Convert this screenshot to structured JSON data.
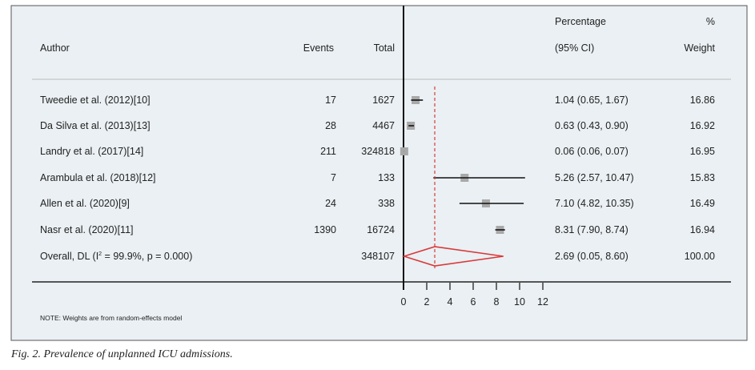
{
  "chart_data": {
    "type": "forest",
    "headers": {
      "author": "Author",
      "events": "Events",
      "total": "Total",
      "effect_top": "Percentage",
      "effect_bottom": "(95% CI)",
      "weight_top": "%",
      "weight_bottom": "Weight"
    },
    "studies": [
      {
        "author": "Tweedie et al. (2012)[10]",
        "events": "17",
        "total": "1627",
        "est": 1.04,
        "lo": 0.65,
        "hi": 1.67,
        "ci_text": "1.04 (0.65, 1.67)",
        "weight": "16.86"
      },
      {
        "author": "Da Silva et al. (2013)[13]",
        "events": "28",
        "total": "4467",
        "est": 0.63,
        "lo": 0.43,
        "hi": 0.9,
        "ci_text": "0.63 (0.43, 0.90)",
        "weight": "16.92"
      },
      {
        "author": "Landry et al. (2017)[14]",
        "events": "211",
        "total": "324818",
        "est": 0.06,
        "lo": 0.06,
        "hi": 0.07,
        "ci_text": "0.06 (0.06, 0.07)",
        "weight": "16.95"
      },
      {
        "author": "Arambula et al. (2018)[12]",
        "events": "7",
        "total": "133",
        "est": 5.26,
        "lo": 2.57,
        "hi": 10.47,
        "ci_text": "5.26 (2.57, 10.47)",
        "weight": "15.83"
      },
      {
        "author": "Allen et al. (2020)[9]",
        "events": "24",
        "total": "338",
        "est": 7.1,
        "lo": 4.82,
        "hi": 10.35,
        "ci_text": "7.10 (4.82, 10.35)",
        "weight": "16.49"
      },
      {
        "author": "Nasr et al. (2020)[11]",
        "events": "1390",
        "total": "16724",
        "est": 8.31,
        "lo": 7.9,
        "hi": 8.74,
        "ci_text": "8.31 (7.90, 8.74)",
        "weight": "16.94"
      }
    ],
    "overall": {
      "label_prefix": "Overall, DL (I",
      "label_sup": "2",
      "label_suffix": " = 99.9%, p = 0.000)",
      "total": "348107",
      "est": 2.69,
      "lo": 0.05,
      "hi": 8.6,
      "ci_text": "2.69 (0.05, 8.60)",
      "weight": "100.00"
    },
    "xticks": [
      0,
      2,
      4,
      6,
      8,
      10,
      12
    ],
    "xlim": [
      0,
      12
    ],
    "note": "NOTE: Weights are from random-effects model",
    "colors": {
      "background": "#eaf0f3",
      "overall": "#d9393a",
      "box": "#a9a9a9",
      "line": "#111111"
    }
  },
  "caption": "Fig. 2. Prevalence of unplanned ICU admissions."
}
